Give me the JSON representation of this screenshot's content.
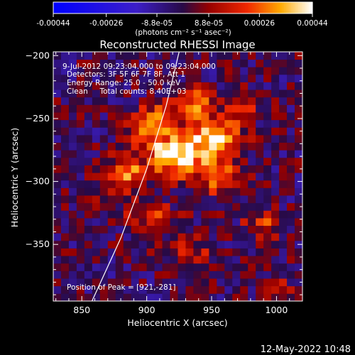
{
  "chart_data": {
    "type": "heatmap",
    "title": "Reconstructed RHESSI Image",
    "xlabel": "Heliocentric X (arcsec)",
    "ylabel": "Heliocentric Y (arcsec)",
    "xlim": [
      828,
      1020
    ],
    "ylim": [
      -395,
      -197
    ],
    "xticks": [
      "850",
      "900",
      "950",
      "1000"
    ],
    "xtick_values": [
      850,
      900,
      950,
      1000
    ],
    "yticks": [
      "-200",
      "-250",
      "-300",
      "-350"
    ],
    "ytick_values": [
      -200,
      -250,
      -300,
      -350
    ],
    "colorbar": {
      "ticks": [
        "-0.00044",
        "-0.00026",
        "-8.8e-05",
        "8.8e-05",
        "0.00026",
        "0.00044"
      ],
      "tick_values": [
        -0.00044,
        -0.00026,
        -8.8e-05,
        8.8e-05,
        0.00026,
        0.00044
      ],
      "range": [
        -0.00044,
        0.00044
      ],
      "units": "(photons cm⁻² s⁻¹ asec⁻²)"
    },
    "annotations": [
      "9-Jul-2012 09:23:04.000 to 09:23:04.000",
      "Detectors: 3F 5F 6F 7F 8F, Att 1",
      "Energy Range: 25.0 - 50.0 keV",
      "Clean     Total counts: 8.40E+03",
      "Position of Peak = [921,-281]"
    ],
    "peak": {
      "x": 921,
      "y": -281
    },
    "hotspots": [
      {
        "x": 925,
        "y": -280,
        "value": 0.00044,
        "sx": 16,
        "sy": 12
      },
      {
        "x": 955,
        "y": -265,
        "value": 0.00038,
        "sx": 14,
        "sy": 10
      },
      {
        "x": 905,
        "y": -255,
        "value": 0.00035,
        "sx": 12,
        "sy": 10
      },
      {
        "x": 935,
        "y": -238,
        "value": 0.00034,
        "sx": 12,
        "sy": 8
      },
      {
        "x": 885,
        "y": -292,
        "value": 0.00028,
        "sx": 10,
        "sy": 10
      },
      {
        "x": 960,
        "y": -298,
        "value": 0.00025,
        "sx": 12,
        "sy": 10
      },
      {
        "x": 900,
        "y": -325,
        "value": 0.0002,
        "sx": 14,
        "sy": 8
      },
      {
        "x": 990,
        "y": -335,
        "value": 0.00022,
        "sx": 10,
        "sy": 8
      },
      {
        "x": 860,
        "y": -310,
        "value": 0.00014,
        "sx": 8,
        "sy": 8
      },
      {
        "x": 930,
        "y": -355,
        "value": 0.00016,
        "sx": 14,
        "sy": 8
      },
      {
        "x": 975,
        "y": -240,
        "value": 0.00018,
        "sx": 10,
        "sy": 8
      },
      {
        "x": 1000,
        "y": -385,
        "value": 0.00018,
        "sx": 8,
        "sy": 6
      }
    ],
    "limb_curve": [
      {
        "x": 857,
        "y": -397
      },
      {
        "x": 880,
        "y": -345
      },
      {
        "x": 900,
        "y": -290
      },
      {
        "x": 915,
        "y": -240
      },
      {
        "x": 925,
        "y": -197
      }
    ],
    "grid": false,
    "legend": "none"
  },
  "timestamp": "12-May-2022 10:48"
}
